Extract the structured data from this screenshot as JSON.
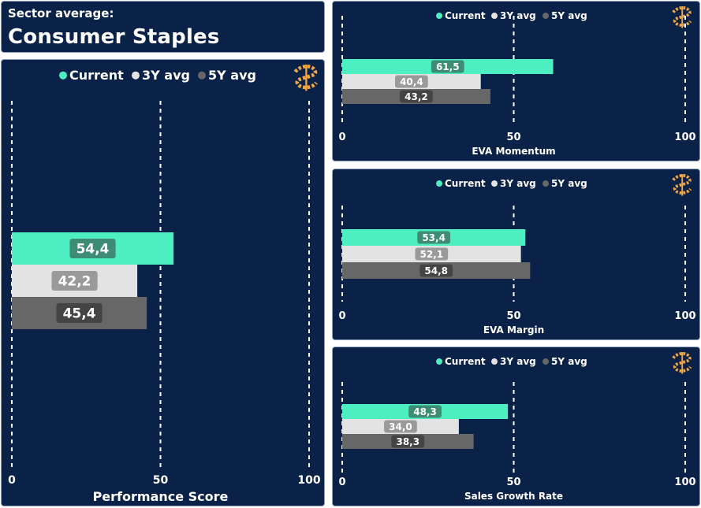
{
  "header": {
    "subtitle": "Sector average:",
    "title": "Consumer Staples"
  },
  "colors": {
    "current": "#4deec0",
    "avg3": "#e3e3e3",
    "avg5": "#676767",
    "label_current": "#3f8c74",
    "label_avg3": "#9a9a9a",
    "label_avg5": "#444444",
    "background": "#0a2148",
    "logo": "#f0a545"
  },
  "logo_icon": "dollar-logo-icon",
  "legend": [
    "Current",
    "3Y avg",
    "5Y avg"
  ],
  "chart_data": [
    {
      "type": "bar",
      "orientation": "horizontal",
      "xlabel": "Performance Score",
      "xlim": [
        0,
        100
      ],
      "ticks": [
        "0",
        "50",
        "100"
      ],
      "grid": "dashed vertical at ticks",
      "legend_position": "top",
      "series": [
        {
          "name": "Current",
          "values": [
            54.4
          ],
          "labels": [
            "54,4"
          ]
        },
        {
          "name": "3Y avg",
          "values": [
            42.2
          ],
          "labels": [
            "42,2"
          ]
        },
        {
          "name": "5Y avg",
          "values": [
            45.4
          ],
          "labels": [
            "45,4"
          ]
        }
      ]
    },
    {
      "type": "bar",
      "orientation": "horizontal",
      "xlabel": "EVA Momentum",
      "xlim": [
        0,
        100
      ],
      "ticks": [
        "0",
        "50",
        "100"
      ],
      "grid": "dashed vertical at ticks",
      "legend_position": "top",
      "series": [
        {
          "name": "Current",
          "values": [
            61.5
          ],
          "labels": [
            "61,5"
          ]
        },
        {
          "name": "3Y avg",
          "values": [
            40.4
          ],
          "labels": [
            "40,4"
          ]
        },
        {
          "name": "5Y avg",
          "values": [
            43.2
          ],
          "labels": [
            "43,2"
          ]
        }
      ]
    },
    {
      "type": "bar",
      "orientation": "horizontal",
      "xlabel": "EVA Margin",
      "xlim": [
        0,
        100
      ],
      "ticks": [
        "0",
        "50",
        "100"
      ],
      "grid": "dashed vertical at ticks",
      "legend_position": "top",
      "series": [
        {
          "name": "Current",
          "values": [
            53.4
          ],
          "labels": [
            "53,4"
          ]
        },
        {
          "name": "3Y avg",
          "values": [
            52.1
          ],
          "labels": [
            "52,1"
          ]
        },
        {
          "name": "5Y avg",
          "values": [
            54.8
          ],
          "labels": [
            "54,8"
          ]
        }
      ]
    },
    {
      "type": "bar",
      "orientation": "horizontal",
      "xlabel": "Sales Growth Rate",
      "xlim": [
        0,
        100
      ],
      "ticks": [
        "0",
        "50",
        "100"
      ],
      "grid": "dashed vertical at ticks",
      "legend_position": "top",
      "series": [
        {
          "name": "Current",
          "values": [
            48.3
          ],
          "labels": [
            "48,3"
          ]
        },
        {
          "name": "3Y avg",
          "values": [
            34.0
          ],
          "labels": [
            "34,0"
          ]
        },
        {
          "name": "5Y avg",
          "values": [
            38.3
          ],
          "labels": [
            "38,3"
          ]
        }
      ]
    }
  ]
}
